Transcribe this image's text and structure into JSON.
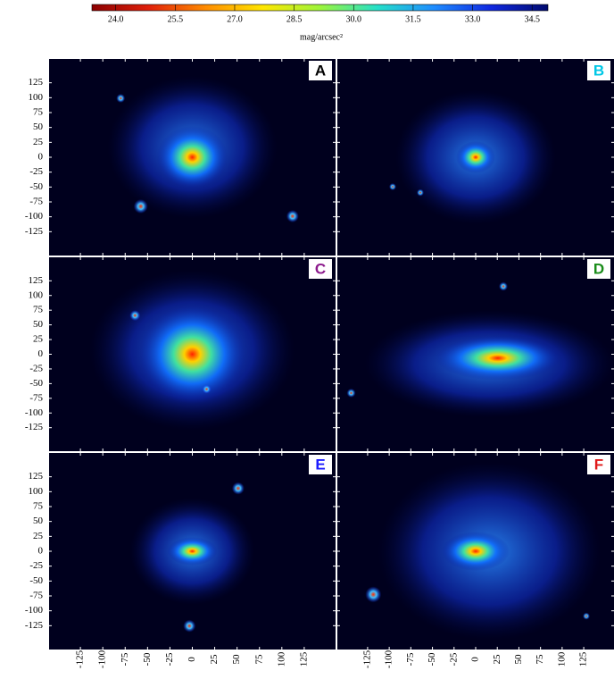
{
  "colorbar": {
    "label": "mag/arcsec²",
    "clim": [
      23.4,
      34.9
    ],
    "colors": [
      "#8b0000",
      "#e0200a",
      "#ff8c00",
      "#ffe600",
      "#9cf53a",
      "#25e0c8",
      "#1e8cff",
      "#1028e0",
      "#000a6e"
    ],
    "ticks": [
      {
        "value": 24,
        "label": "24.0"
      },
      {
        "value": 25.5,
        "label": "25.5"
      },
      {
        "value": 27,
        "label": "27.0"
      },
      {
        "value": 28.5,
        "label": "28.5"
      },
      {
        "value": 30,
        "label": "30.0"
      },
      {
        "value": 31.5,
        "label": "31.5"
      },
      {
        "value": 33,
        "label": "33.0"
      },
      {
        "value": 34.5,
        "label": "34.5"
      }
    ]
  },
  "axes": {
    "xlim": [
      -160,
      160
    ],
    "ylim": [
      -165,
      165
    ],
    "xticks": [
      -125,
      -100,
      -75,
      -50,
      -25,
      0,
      25,
      50,
      75,
      100,
      125
    ],
    "yticks": [
      125,
      100,
      75,
      50,
      25,
      0,
      -25,
      -50,
      -75,
      -100,
      -125
    ]
  },
  "panels": [
    {
      "label": "A",
      "label_color": "#000000"
    },
    {
      "label": "B",
      "label_color": "#00c8e6"
    },
    {
      "label": "C",
      "label_color": "#8c1a8c"
    },
    {
      "label": "D",
      "label_color": "#1a8c1a"
    },
    {
      "label": "E",
      "label_color": "#1a1aff"
    },
    {
      "label": "F",
      "label_color": "#e01a1a"
    }
  ]
}
